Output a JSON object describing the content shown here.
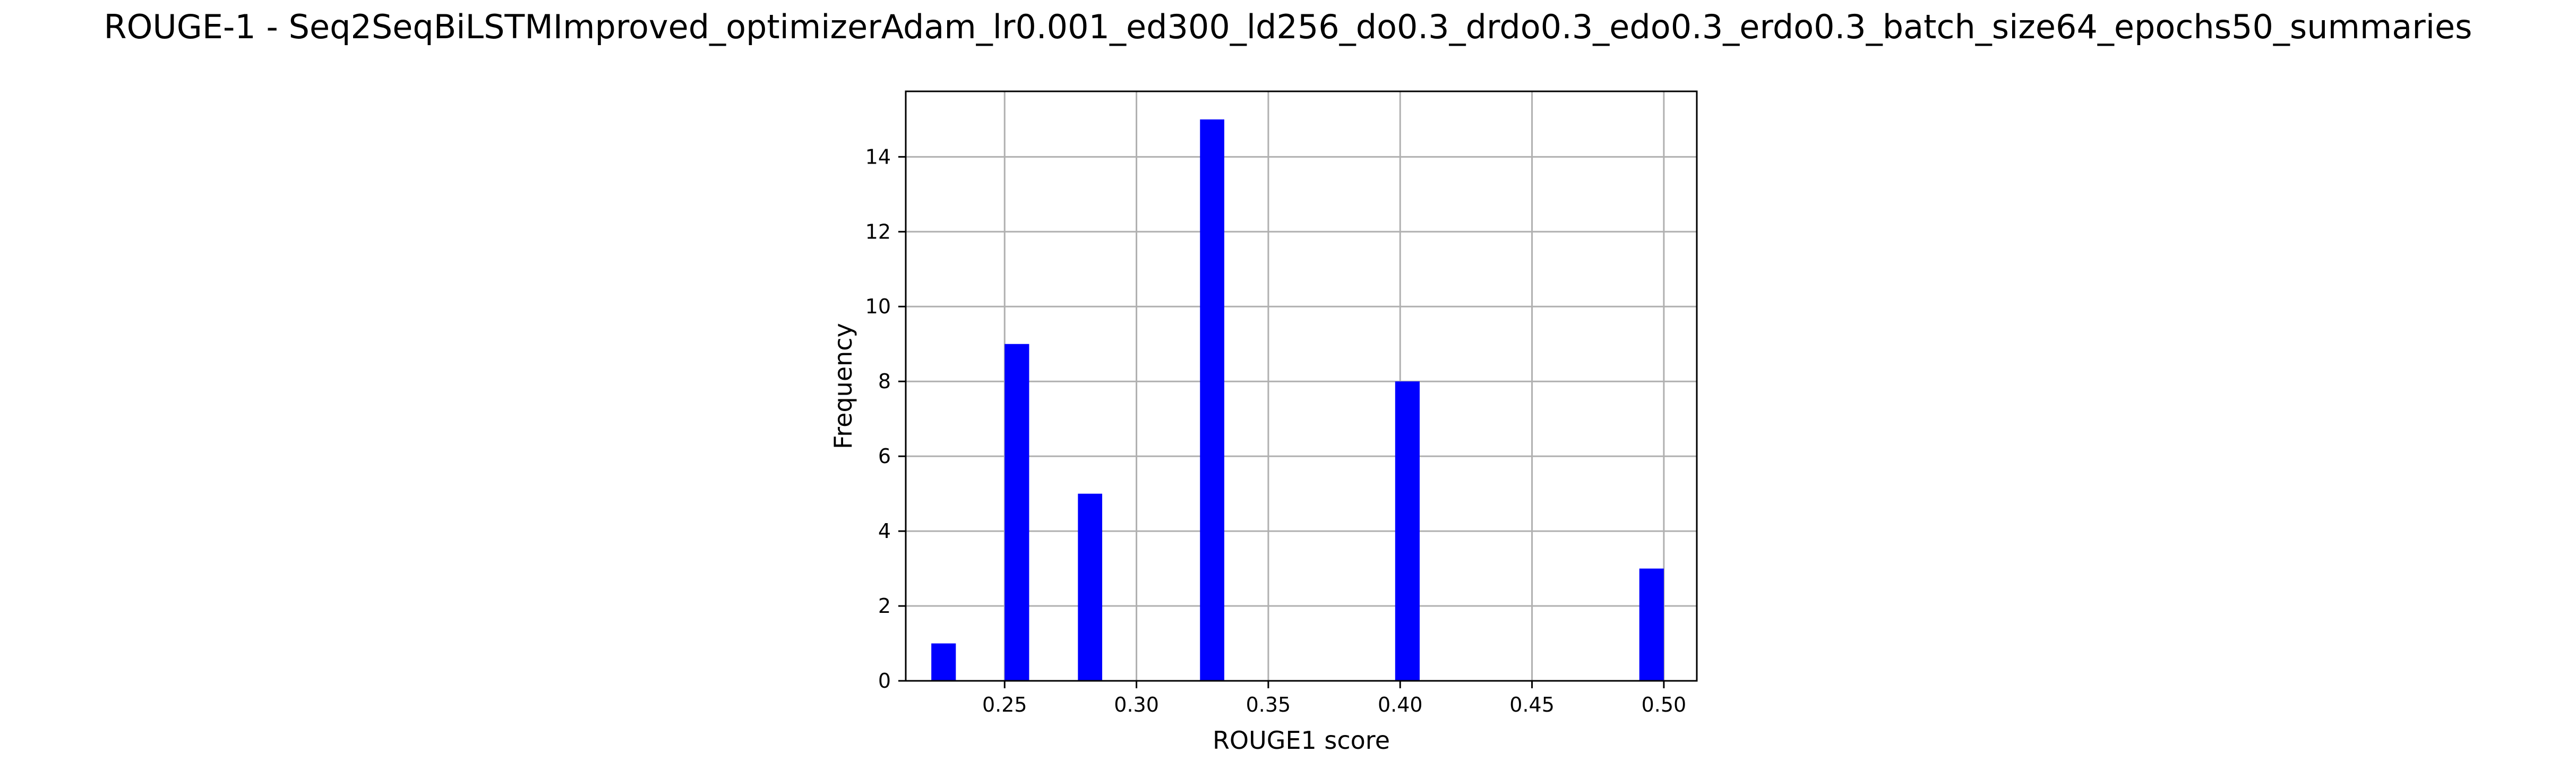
{
  "chart_data": {
    "type": "bar",
    "title": "ROUGE-1 - Seq2SeqBiLSTMImproved_optimizerAdam_lr0.001_ed300_ld256_do0.3_drdo0.3_edo0.3_erdo0.3_batch_size64_epochs50_summaries",
    "xlabel": "ROUGE1 score",
    "ylabel": "Frequency",
    "xlim": [
      0.2125,
      0.5125
    ],
    "ylim": [
      0,
      15.75
    ],
    "x_ticks": [
      0.25,
      0.3,
      0.35,
      0.4,
      0.45,
      0.5
    ],
    "x_tick_labels": [
      "0.25",
      "0.30",
      "0.35",
      "0.40",
      "0.45",
      "0.50"
    ],
    "y_ticks": [
      0,
      2,
      4,
      6,
      8,
      10,
      12,
      14
    ],
    "y_tick_labels": [
      "0",
      "2",
      "4",
      "6",
      "8",
      "10",
      "12",
      "14"
    ],
    "grid": true,
    "bar_color": "#0000ff",
    "bars": [
      {
        "x_start": 0.2222,
        "x_end": 0.2315,
        "value": 1
      },
      {
        "x_start": 0.25,
        "x_end": 0.2593,
        "value": 9
      },
      {
        "x_start": 0.2778,
        "x_end": 0.287,
        "value": 5
      },
      {
        "x_start": 0.3241,
        "x_end": 0.3333,
        "value": 15
      },
      {
        "x_start": 0.3981,
        "x_end": 0.4074,
        "value": 8
      },
      {
        "x_start": 0.4907,
        "x_end": 0.5,
        "value": 3
      }
    ]
  }
}
